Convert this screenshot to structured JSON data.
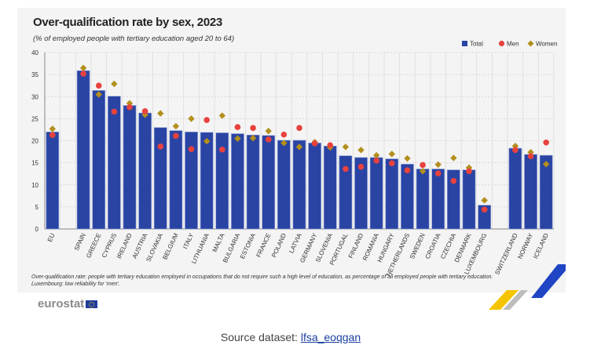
{
  "chart_data": {
    "type": "bar",
    "title": "Over-qualification rate by sex, 2023",
    "subtitle": "(% of employed people with tertiary education aged 20 to 64)",
    "ylim": [
      0,
      40
    ],
    "yticks": [
      0,
      5,
      10,
      15,
      20,
      25,
      30,
      35,
      40
    ],
    "grid": true,
    "legend_position": "top-right",
    "categories": [
      "EU",
      "",
      "SPAIN",
      "GREECE",
      "CYPRUS",
      "IRELAND",
      "AUSTRIA",
      "SLOVAKIA",
      "BELGIUM",
      "ITALY",
      "LITHUANIA",
      "MALTA",
      "BULGARIA",
      "ESTONIA",
      "FRANCE",
      "POLAND",
      "LATVIA",
      "GERMANY",
      "SLOVENIA",
      "PORTUGAL",
      "FINLAND",
      "ROMANIA",
      "HUNGARY",
      "NETHERLANDS",
      "SWEDEN",
      "CROATIA",
      "CZECHIA",
      "DENMARK",
      "LUXEMBOURG",
      "",
      "SWITZERLAND",
      "NORWAY",
      "ICELAND"
    ],
    "series": [
      {
        "name": "Total",
        "mark": "bar",
        "color": "#2a44a4",
        "values": [
          22.0,
          null,
          35.9,
          31.4,
          30.1,
          28.0,
          26.3,
          23.0,
          22.3,
          22.0,
          21.9,
          21.8,
          21.6,
          21.3,
          21.2,
          20.1,
          20.1,
          19.5,
          18.8,
          16.6,
          16.2,
          16.2,
          15.9,
          14.7,
          13.6,
          13.6,
          13.4,
          13.4,
          5.4,
          null,
          18.3,
          16.9,
          16.7
        ]
      },
      {
        "name": "Men",
        "mark": "circle",
        "color": "#e8423f",
        "values": [
          21.3,
          null,
          35.2,
          32.5,
          26.6,
          27.6,
          26.7,
          18.7,
          21.1,
          18.1,
          24.7,
          18.0,
          23.1,
          22.9,
          20.3,
          21.4,
          22.9,
          19.4,
          19.0,
          13.6,
          14.1,
          15.5,
          14.9,
          13.3,
          14.5,
          12.6,
          10.9,
          13.1,
          4.4,
          null,
          17.9,
          16.5,
          19.6
        ]
      },
      {
        "name": "Women",
        "mark": "diamond",
        "color": "#b38f1d",
        "values": [
          22.7,
          null,
          36.5,
          30.5,
          32.9,
          28.5,
          25.9,
          26.2,
          23.3,
          25.0,
          19.9,
          25.7,
          20.5,
          20.6,
          22.2,
          19.5,
          18.6,
          19.7,
          18.5,
          18.6,
          17.9,
          16.7,
          17.0,
          16.0,
          13.1,
          14.6,
          16.1,
          13.9,
          6.5,
          null,
          18.8,
          17.4,
          14.7
        ]
      }
    ]
  },
  "notes": {
    "line1": "Over-qualification rate: people with tertiary education employed in occupations that do not require such a high level of education, as percentage of all employed people with tertiary education.",
    "line2": "Luxembourg: low reliability for 'men'."
  },
  "logo": "eurostat",
  "source": {
    "prefix": "Source dataset: ",
    "link": "lfsa_eoqgan"
  }
}
